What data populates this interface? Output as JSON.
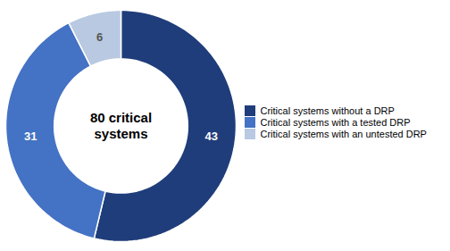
{
  "chart_data": {
    "type": "donut",
    "categories": [
      "Critical systems without a DRP",
      "Critical systems with a tested DRP",
      "Critical systems with an untested DRP"
    ],
    "values": [
      43,
      31,
      6
    ],
    "colors": [
      "#1F3D7A",
      "#4472C4",
      "#B8C9E1"
    ],
    "data_labels": true,
    "annotations": [
      "80 critical",
      "systems"
    ],
    "legend": "right"
  }
}
